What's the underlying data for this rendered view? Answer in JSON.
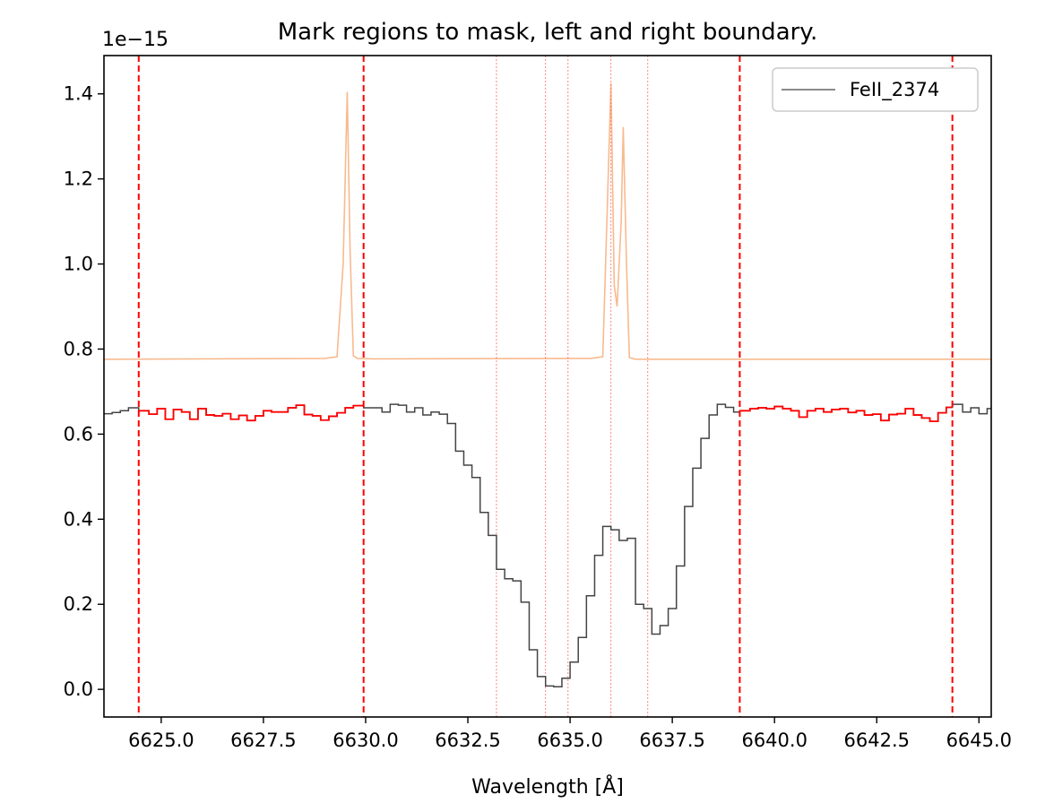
{
  "chart_data": {
    "type": "line",
    "title": "Mark regions to mask, left and right boundary.",
    "xlabel": "Wavelength  [Å]",
    "ylabel": "",
    "y_offset_text": "1e−15",
    "xlim": [
      6623.6,
      6645.3
    ],
    "ylim": [
      -0.065,
      1.49
    ],
    "grid": false,
    "legend": {
      "placement": "top-right",
      "entries": [
        "FeII_2374"
      ]
    },
    "x_ticks": [
      6625.0,
      6627.5,
      6630.0,
      6632.5,
      6635.0,
      6637.5,
      6640.0,
      6642.5,
      6645.0
    ],
    "x_tick_labels": [
      "6625.0",
      "6627.5",
      "6630.0",
      "6632.5",
      "6635.0",
      "6637.5",
      "6640.0",
      "6642.5",
      "6645.0"
    ],
    "y_ticks": [
      0.0,
      0.2,
      0.4,
      0.6,
      0.8,
      1.0,
      1.2,
      1.4
    ],
    "y_tick_labels": [
      "0.0",
      "0.2",
      "0.4",
      "0.6",
      "0.8",
      "1.0",
      "1.2",
      "1.4"
    ],
    "colors": {
      "spectrum": "#444444",
      "masked": "#ff0000",
      "model": "#f5a36a",
      "boundary": "#ff0000"
    },
    "boundary_lines": [
      6624.45,
      6629.95,
      6639.15,
      6644.35
    ],
    "component_lines": [
      6633.2,
      6634.4,
      6634.95,
      6636.0,
      6636.9
    ],
    "series": [
      {
        "name": "FeII_2374",
        "style": "steps",
        "x": [
          6623.6,
          6623.8,
          6624.0,
          6624.2,
          6624.45,
          6624.7,
          6624.9,
          6625.1,
          6625.3,
          6625.5,
          6625.7,
          6625.9,
          6626.1,
          6626.3,
          6626.5,
          6626.7,
          6626.9,
          6627.1,
          6627.3,
          6627.5,
          6627.7,
          6627.9,
          6628.1,
          6628.3,
          6628.5,
          6628.7,
          6628.9,
          6629.1,
          6629.3,
          6629.5,
          6629.7,
          6629.95,
          6630.2,
          6630.4,
          6630.6,
          6630.8,
          6631.0,
          6631.2,
          6631.4,
          6631.6,
          6631.8,
          6632.0,
          6632.2,
          6632.4,
          6632.6,
          6632.8,
          6633.0,
          6633.2,
          6633.4,
          6633.6,
          6633.8,
          6634.0,
          6634.2,
          6634.4,
          6634.6,
          6634.8,
          6635.0,
          6635.2,
          6635.4,
          6635.6,
          6635.8,
          6636.0,
          6636.2,
          6636.4,
          6636.6,
          6636.8,
          6637.0,
          6637.2,
          6637.4,
          6637.6,
          6637.8,
          6638.0,
          6638.2,
          6638.4,
          6638.6,
          6638.8,
          6639.0,
          6639.15,
          6639.4,
          6639.6,
          6639.8,
          6640.0,
          6640.2,
          6640.4,
          6640.6,
          6640.8,
          6641.0,
          6641.2,
          6641.4,
          6641.6,
          6641.8,
          6642.0,
          6642.2,
          6642.4,
          6642.6,
          6642.8,
          6643.0,
          6643.2,
          6643.4,
          6643.6,
          6643.8,
          6644.0,
          6644.2,
          6644.35,
          6644.6,
          6644.8,
          6645.0,
          6645.2
        ],
        "y": [
          0.648,
          0.651,
          0.655,
          0.662,
          0.655,
          0.647,
          0.66,
          0.635,
          0.658,
          0.652,
          0.635,
          0.66,
          0.645,
          0.643,
          0.648,
          0.635,
          0.644,
          0.632,
          0.643,
          0.655,
          0.652,
          0.652,
          0.662,
          0.668,
          0.646,
          0.643,
          0.633,
          0.642,
          0.65,
          0.662,
          0.667,
          0.662,
          0.662,
          0.652,
          0.67,
          0.668,
          0.652,
          0.662,
          0.645,
          0.652,
          0.647,
          0.625,
          0.56,
          0.527,
          0.498,
          0.416,
          0.362,
          0.282,
          0.26,
          0.255,
          0.205,
          0.093,
          0.03,
          0.008,
          0.006,
          0.026,
          0.064,
          0.122,
          0.22,
          0.315,
          0.383,
          0.375,
          0.35,
          0.355,
          0.2,
          0.19,
          0.13,
          0.15,
          0.19,
          0.29,
          0.43,
          0.52,
          0.59,
          0.645,
          0.67,
          0.663,
          0.652,
          0.655,
          0.66,
          0.662,
          0.66,
          0.665,
          0.66,
          0.655,
          0.64,
          0.655,
          0.66,
          0.652,
          0.658,
          0.66,
          0.651,
          0.655,
          0.645,
          0.647,
          0.632,
          0.646,
          0.648,
          0.66,
          0.645,
          0.638,
          0.63,
          0.65,
          0.663,
          0.67,
          0.652,
          0.662,
          0.648,
          0.66
        ]
      },
      {
        "name": "",
        "style": "steps-masked",
        "ranges": [
          [
            6624.45,
            6629.95
          ],
          [
            6639.15,
            6644.35
          ]
        ]
      },
      {
        "name": "",
        "style": "line",
        "x": [
          6623.6,
          6629.0,
          6629.3,
          6629.45,
          6629.55,
          6629.62,
          6629.7,
          6629.8,
          6630.2,
          6635.5,
          6635.8,
          6635.9,
          6636.0,
          6636.08,
          6636.15,
          6636.25,
          6636.3,
          6636.38,
          6636.45,
          6636.6,
          6645.3
        ],
        "y": [
          0.776,
          0.778,
          0.782,
          1.0,
          1.405,
          1.03,
          0.784,
          0.778,
          0.777,
          0.778,
          0.782,
          1.1,
          1.425,
          0.95,
          0.9,
          1.1,
          1.322,
          1.0,
          0.78,
          0.776,
          0.776
        ]
      }
    ]
  }
}
